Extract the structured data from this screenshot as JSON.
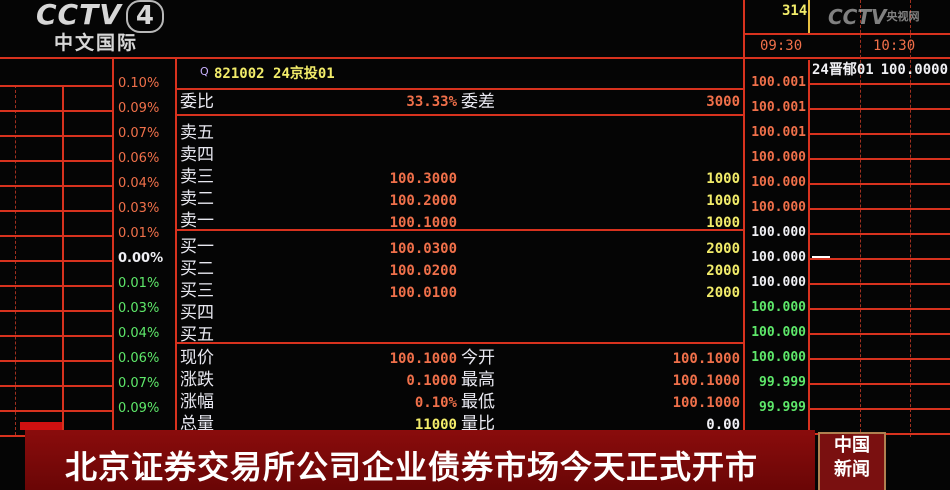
{
  "logo": {
    "brand": "CCTV",
    "channel": "4",
    "subtitle": "中文国际"
  },
  "watermark": {
    "brand": "CCTV",
    "site": "央视网",
    "suffix": ".com"
  },
  "quote": {
    "search_icon": "search-icon",
    "code": "821002",
    "name": "24京投01",
    "weibi_label": "委比",
    "weibi_value": "33.33%",
    "weicha_label": "委差",
    "weicha_value": "3000",
    "asks": [
      {
        "label": "卖五",
        "price": "",
        "volume": ""
      },
      {
        "label": "卖四",
        "price": "",
        "volume": ""
      },
      {
        "label": "卖三",
        "price": "100.3000",
        "volume": "1000"
      },
      {
        "label": "卖二",
        "price": "100.2000",
        "volume": "1000"
      },
      {
        "label": "卖一",
        "price": "100.1000",
        "volume": "1000"
      }
    ],
    "bids": [
      {
        "label": "买一",
        "price": "100.0300",
        "volume": "2000"
      },
      {
        "label": "买二",
        "price": "100.0200",
        "volume": "2000"
      },
      {
        "label": "买三",
        "price": "100.0100",
        "volume": "2000"
      },
      {
        "label": "买四",
        "price": "",
        "volume": ""
      },
      {
        "label": "买五",
        "price": "",
        "volume": ""
      }
    ],
    "stats": [
      {
        "label": "现价",
        "value": "100.1000",
        "label2": "今开",
        "value2": "100.1000",
        "color": "red"
      },
      {
        "label": "涨跌",
        "value": "0.1000",
        "label2": "最高",
        "value2": "100.1000",
        "color": "red"
      },
      {
        "label": "涨幅",
        "value": "0.10%",
        "label2": "最低",
        "value2": "100.1000",
        "color": "red"
      },
      {
        "label": "总量",
        "value": "11000",
        "label2": "量比",
        "value2": "0.00",
        "color": "yel"
      }
    ]
  },
  "pct_axis": [
    {
      "v": "0.10%",
      "c": "red"
    },
    {
      "v": "0.09%",
      "c": "red"
    },
    {
      "v": "0.07%",
      "c": "red"
    },
    {
      "v": "0.06%",
      "c": "red"
    },
    {
      "v": "0.04%",
      "c": "red"
    },
    {
      "v": "0.03%",
      "c": "red"
    },
    {
      "v": "0.01%",
      "c": "red"
    },
    {
      "v": "0.00%",
      "c": "wht"
    },
    {
      "v": "0.01%",
      "c": "grn"
    },
    {
      "v": "0.03%",
      "c": "grn"
    },
    {
      "v": "0.04%",
      "c": "grn"
    },
    {
      "v": "0.06%",
      "c": "grn"
    },
    {
      "v": "0.07%",
      "c": "grn"
    },
    {
      "v": "0.09%",
      "c": "grn"
    }
  ],
  "price_axis": [
    {
      "v": "100.001",
      "c": "red"
    },
    {
      "v": "100.001",
      "c": "red"
    },
    {
      "v": "100.001",
      "c": "red"
    },
    {
      "v": "100.000",
      "c": "red"
    },
    {
      "v": "100.000",
      "c": "red"
    },
    {
      "v": "100.000",
      "c": "red"
    },
    {
      "v": "100.000",
      "c": "wht"
    },
    {
      "v": "100.000",
      "c": "wht"
    },
    {
      "v": "100.000",
      "c": "wht"
    },
    {
      "v": "100.000",
      "c": "grn"
    },
    {
      "v": "100.000",
      "c": "grn"
    },
    {
      "v": "100.000",
      "c": "grn"
    },
    {
      "v": "99.999",
      "c": "grn"
    },
    {
      "v": "99.999",
      "c": "grn"
    }
  ],
  "chart_header": {
    "top_value": "314",
    "time_start": "09:30",
    "time_mid": "10:30",
    "ticker": "24晋郁01",
    "price": "100.0000"
  },
  "banner": {
    "headline": "北京证券交易所公司企业债券市场今天正式开市",
    "badge_line1": "中国",
    "badge_line2": "新闻"
  },
  "colors": {
    "grid": "#d8321e",
    "banner": "#7a0a0a",
    "up": "#f0704a",
    "down": "#5ee86a",
    "volume": "#f2ec6a"
  }
}
